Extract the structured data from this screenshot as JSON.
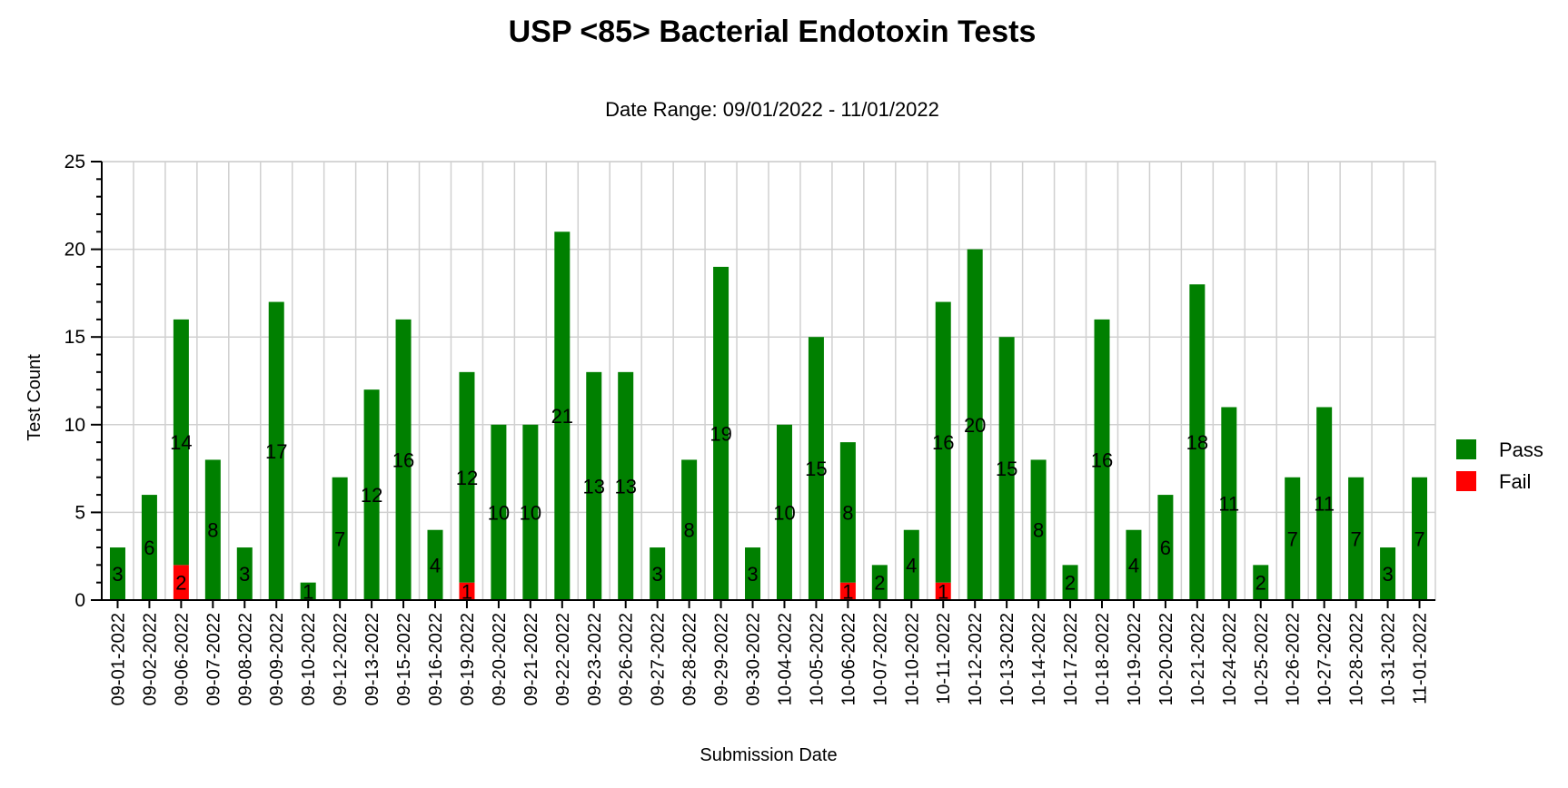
{
  "chart_data": {
    "type": "bar",
    "stacked": true,
    "title": "USP <85> Bacterial Endotoxin Tests",
    "subtitle": "Date Range: 09/01/2022 - 11/01/2022",
    "xlabel": "Submission Date",
    "ylabel": "Test Count",
    "ylim": [
      0,
      25
    ],
    "yticks": [
      0,
      5,
      10,
      15,
      20,
      25
    ],
    "grid": true,
    "legend_position": "right",
    "categories": [
      "09-01-2022",
      "09-02-2022",
      "09-06-2022",
      "09-07-2022",
      "09-08-2022",
      "09-09-2022",
      "09-10-2022",
      "09-12-2022",
      "09-13-2022",
      "09-15-2022",
      "09-16-2022",
      "09-19-2022",
      "09-20-2022",
      "09-21-2022",
      "09-22-2022",
      "09-23-2022",
      "09-26-2022",
      "09-27-2022",
      "09-28-2022",
      "09-29-2022",
      "09-30-2022",
      "10-04-2022",
      "10-05-2022",
      "10-06-2022",
      "10-07-2022",
      "10-10-2022",
      "10-11-2022",
      "10-12-2022",
      "10-13-2022",
      "10-14-2022",
      "10-17-2022",
      "10-18-2022",
      "10-19-2022",
      "10-20-2022",
      "10-21-2022",
      "10-24-2022",
      "10-25-2022",
      "10-26-2022",
      "10-27-2022",
      "10-28-2022",
      "10-31-2022",
      "11-01-2022"
    ],
    "series": [
      {
        "name": "Fail",
        "color": "#ff0000",
        "values": [
          0,
          0,
          2,
          0,
          0,
          0,
          0,
          0,
          0,
          0,
          0,
          1,
          0,
          0,
          0,
          0,
          0,
          0,
          0,
          0,
          0,
          0,
          0,
          1,
          0,
          0,
          1,
          0,
          0,
          0,
          0,
          0,
          0,
          0,
          0,
          0,
          0,
          0,
          0,
          0,
          0,
          0
        ]
      },
      {
        "name": "Pass",
        "color": "#008000",
        "values": [
          3,
          6,
          14,
          8,
          3,
          17,
          1,
          7,
          12,
          16,
          4,
          12,
          10,
          10,
          21,
          13,
          13,
          3,
          8,
          19,
          3,
          10,
          15,
          8,
          2,
          4,
          16,
          20,
          15,
          8,
          2,
          16,
          4,
          6,
          18,
          11,
          2,
          7,
          11,
          7,
          3,
          7
        ]
      }
    ],
    "legend": [
      {
        "name": "Pass",
        "color": "#008000"
      },
      {
        "name": "Fail",
        "color": "#ff0000"
      }
    ]
  }
}
